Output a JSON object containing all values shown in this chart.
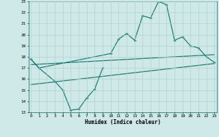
{
  "xlabel": "Humidex (Indice chaleur)",
  "x_values": [
    0,
    1,
    2,
    3,
    4,
    5,
    6,
    7,
    8,
    9,
    10,
    11,
    12,
    13,
    14,
    15,
    16,
    17,
    18,
    19,
    20,
    21,
    22,
    23
  ],
  "line_upper": [
    17.8,
    17.0,
    null,
    null,
    null,
    null,
    null,
    null,
    null,
    null,
    18.3,
    19.6,
    20.1,
    19.5,
    21.7,
    21.5,
    23.0,
    22.7,
    19.5,
    19.8,
    19.0,
    18.8,
    18.0,
    17.5
  ],
  "line_lower": [
    17.8,
    17.0,
    null,
    15.8,
    15.0,
    13.2,
    13.3,
    14.3,
    15.1,
    17.0,
    null,
    null,
    null,
    null,
    null,
    null,
    null,
    null,
    null,
    null,
    null,
    null,
    null,
    null
  ],
  "trend1_x": [
    0,
    23
  ],
  "trend1_y": [
    17.3,
    18.2
  ],
  "trend2_x": [
    0,
    23
  ],
  "trend2_y": [
    15.5,
    17.4
  ],
  "xlim": [
    -0.3,
    23.3
  ],
  "ylim": [
    13,
    23
  ],
  "yticks": [
    13,
    14,
    15,
    16,
    17,
    18,
    19,
    20,
    21,
    22,
    23
  ],
  "xticks": [
    0,
    1,
    2,
    3,
    4,
    5,
    6,
    7,
    8,
    9,
    10,
    11,
    12,
    13,
    14,
    15,
    16,
    17,
    18,
    19,
    20,
    21,
    22,
    23
  ],
  "bg_color": "#cfe8e8",
  "grid_color": "#b0d0d0",
  "line_color": "#1a7a6e",
  "marker": "D",
  "marker_size": 2.0,
  "line_width": 0.9
}
